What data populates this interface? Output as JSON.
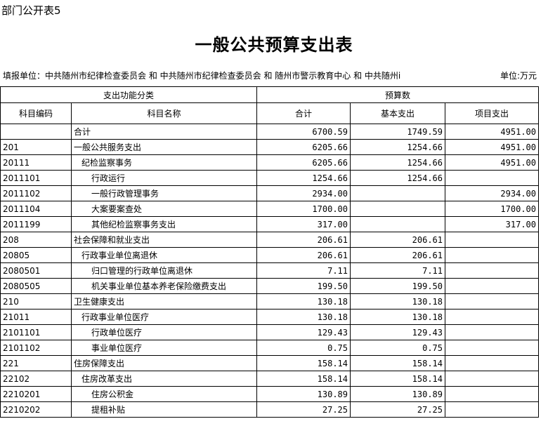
{
  "corner_label": "部门公开表5",
  "title": "一般公共预算支出表",
  "unit_line": "填报单位：中共随州市纪律检查委员会 和 中共随州市纪律检查委员会 和 随州市警示教育中心 和 中共随州i",
  "unit": "单位:万元",
  "headers": {
    "group1": "支出功能分类",
    "group2": "预算数",
    "code": "科目编码",
    "name": "科目名称",
    "total": "合计",
    "basic": "基本支出",
    "project": "项目支出"
  },
  "rows": [
    {
      "code": "",
      "name": "合计",
      "level": 0,
      "total": "6700.59",
      "basic": "1749.59",
      "project": "4951.00"
    },
    {
      "code": "201",
      "name": "一般公共服务支出",
      "level": 0,
      "total": "6205.66",
      "basic": "1254.66",
      "project": "4951.00"
    },
    {
      "code": "20111",
      "name": "纪检监察事务",
      "level": 1,
      "total": "6205.66",
      "basic": "1254.66",
      "project": "4951.00"
    },
    {
      "code": "2011101",
      "name": "行政运行",
      "level": 2,
      "total": "1254.66",
      "basic": "1254.66",
      "project": ""
    },
    {
      "code": "2011102",
      "name": "一般行政管理事务",
      "level": 2,
      "total": "2934.00",
      "basic": "",
      "project": "2934.00"
    },
    {
      "code": "2011104",
      "name": "大案要案查处",
      "level": 2,
      "total": "1700.00",
      "basic": "",
      "project": "1700.00"
    },
    {
      "code": "2011199",
      "name": "其他纪检监察事务支出",
      "level": 2,
      "total": "317.00",
      "basic": "",
      "project": "317.00"
    },
    {
      "code": "208",
      "name": "社会保障和就业支出",
      "level": 0,
      "total": "206.61",
      "basic": "206.61",
      "project": ""
    },
    {
      "code": "20805",
      "name": "行政事业单位离退休",
      "level": 1,
      "total": "206.61",
      "basic": "206.61",
      "project": ""
    },
    {
      "code": "2080501",
      "name": "归口管理的行政单位离退休",
      "level": 2,
      "total": "7.11",
      "basic": "7.11",
      "project": ""
    },
    {
      "code": "2080505",
      "name": "机关事业单位基本养老保险缴费支出",
      "level": 2,
      "total": "199.50",
      "basic": "199.50",
      "project": ""
    },
    {
      "code": "210",
      "name": "卫生健康支出",
      "level": 0,
      "total": "130.18",
      "basic": "130.18",
      "project": ""
    },
    {
      "code": "21011",
      "name": "行政事业单位医疗",
      "level": 1,
      "total": "130.18",
      "basic": "130.18",
      "project": ""
    },
    {
      "code": "2101101",
      "name": "行政单位医疗",
      "level": 2,
      "total": "129.43",
      "basic": "129.43",
      "project": ""
    },
    {
      "code": "2101102",
      "name": "事业单位医疗",
      "level": 2,
      "total": "0.75",
      "basic": "0.75",
      "project": ""
    },
    {
      "code": "221",
      "name": "住房保障支出",
      "level": 0,
      "total": "158.14",
      "basic": "158.14",
      "project": ""
    },
    {
      "code": "22102",
      "name": "住房改革支出",
      "level": 1,
      "total": "158.14",
      "basic": "158.14",
      "project": ""
    },
    {
      "code": "2210201",
      "name": "住房公积金",
      "level": 2,
      "total": "130.89",
      "basic": "130.89",
      "project": ""
    },
    {
      "code": "2210202",
      "name": "提租补贴",
      "level": 2,
      "total": "27.25",
      "basic": "27.25",
      "project": ""
    }
  ]
}
